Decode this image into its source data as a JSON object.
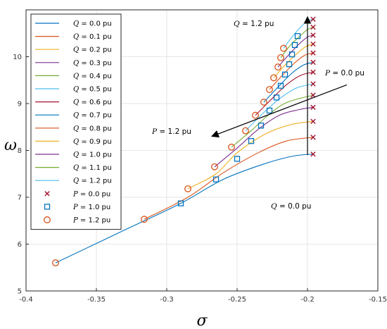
{
  "chart_data": {
    "type": "line",
    "xlabel": "σ",
    "ylabel": "ω",
    "xlim": [
      -0.4,
      -0.15
    ],
    "ylim": [
      5,
      11
    ],
    "x_ticks": [
      "-0.4",
      "-0.35",
      "-0.3",
      "-0.25",
      "-0.2",
      "-0.15"
    ],
    "y_ticks": [
      "5",
      "6",
      "7",
      "8",
      "9",
      "10"
    ],
    "grid": true,
    "legend_position": "top-left",
    "series": [
      {
        "name": "Q = 0.0 pu",
        "color": "#0072BD",
        "points": [
          [
            -0.379,
            5.6
          ],
          [
            -0.33,
            6.3
          ],
          [
            -0.29,
            6.87
          ],
          [
            -0.26,
            7.38
          ],
          [
            -0.23,
            7.72
          ],
          [
            -0.21,
            7.88
          ],
          [
            -0.196,
            7.92
          ]
        ]
      },
      {
        "name": "Q = 0.1 pu",
        "color": "#D95319",
        "points": [
          [
            -0.316,
            6.53
          ],
          [
            -0.285,
            7.0
          ],
          [
            -0.26,
            7.52
          ],
          [
            -0.235,
            7.95
          ],
          [
            -0.215,
            8.2
          ],
          [
            -0.196,
            8.28
          ]
        ]
      },
      {
        "name": "Q = 0.2 pu",
        "color": "#EDB120",
        "points": [
          [
            -0.285,
            7.18
          ],
          [
            -0.265,
            7.5
          ],
          [
            -0.25,
            7.95
          ],
          [
            -0.23,
            8.35
          ],
          [
            -0.212,
            8.55
          ],
          [
            -0.196,
            8.62
          ]
        ]
      },
      {
        "name": "Q = 0.3 pu",
        "color": "#7E2F8E",
        "points": [
          [
            -0.266,
            7.65
          ],
          [
            -0.25,
            8.05
          ],
          [
            -0.235,
            8.45
          ],
          [
            -0.22,
            8.75
          ],
          [
            -0.206,
            8.87
          ],
          [
            -0.196,
            8.92
          ]
        ]
      },
      {
        "name": "Q = 0.4 pu",
        "color": "#77AC30",
        "points": [
          [
            -0.254,
            8.07
          ],
          [
            -0.24,
            8.42
          ],
          [
            -0.228,
            8.75
          ],
          [
            -0.215,
            9.02
          ],
          [
            -0.196,
            9.18
          ]
        ]
      },
      {
        "name": "Q = 0.5 pu",
        "color": "#4DBEEE",
        "points": [
          [
            -0.244,
            8.42
          ],
          [
            -0.232,
            8.78
          ],
          [
            -0.22,
            9.1
          ],
          [
            -0.208,
            9.33
          ],
          [
            -0.196,
            9.42
          ]
        ]
      },
      {
        "name": "Q = 0.6 pu",
        "color": "#A2142F",
        "points": [
          [
            -0.237,
            8.75
          ],
          [
            -0.226,
            9.08
          ],
          [
            -0.215,
            9.4
          ],
          [
            -0.205,
            9.6
          ],
          [
            -0.196,
            9.67
          ]
        ]
      },
      {
        "name": "Q = 0.7 pu",
        "color": "#0072BD",
        "points": [
          [
            -0.231,
            9.03
          ],
          [
            -0.221,
            9.35
          ],
          [
            -0.211,
            9.65
          ],
          [
            -0.203,
            9.82
          ],
          [
            -0.196,
            9.88
          ]
        ]
      },
      {
        "name": "Q = 0.8 pu",
        "color": "#D95319",
        "points": [
          [
            -0.227,
            9.3
          ],
          [
            -0.218,
            9.6
          ],
          [
            -0.209,
            9.87
          ],
          [
            -0.202,
            10.03
          ],
          [
            -0.196,
            10.08
          ]
        ]
      },
      {
        "name": "Q = 0.9 pu",
        "color": "#EDB120",
        "points": [
          [
            -0.224,
            9.55
          ],
          [
            -0.215,
            9.85
          ],
          [
            -0.207,
            10.08
          ],
          [
            -0.201,
            10.22
          ],
          [
            -0.196,
            10.27
          ]
        ]
      },
      {
        "name": "Q = 1.0 pu",
        "color": "#7E2F8E",
        "points": [
          [
            -0.221,
            9.78
          ],
          [
            -0.213,
            10.05
          ],
          [
            -0.206,
            10.27
          ],
          [
            -0.2,
            10.42
          ],
          [
            -0.196,
            10.46
          ]
        ]
      },
      {
        "name": "Q = 1.1 pu",
        "color": "#77AC30",
        "points": [
          [
            -0.219,
            9.98
          ],
          [
            -0.212,
            10.25
          ],
          [
            -0.205,
            10.45
          ],
          [
            -0.2,
            10.58
          ],
          [
            -0.196,
            10.63
          ]
        ]
      },
      {
        "name": "Q = 1.2 pu",
        "color": "#4DBEEE",
        "points": [
          [
            -0.217,
            10.18
          ],
          [
            -0.211,
            10.42
          ],
          [
            -0.205,
            10.63
          ],
          [
            -0.2,
            10.76
          ],
          [
            -0.196,
            10.8
          ]
        ]
      }
    ],
    "markers": [
      {
        "name": "P = 0.0 pu",
        "shape": "x",
        "color": "#A2142F",
        "points": [
          [
            -0.196,
            7.92
          ],
          [
            -0.196,
            8.28
          ],
          [
            -0.196,
            8.62
          ],
          [
            -0.196,
            8.92
          ],
          [
            -0.196,
            9.18
          ],
          [
            -0.196,
            9.42
          ],
          [
            -0.196,
            9.67
          ],
          [
            -0.196,
            9.88
          ],
          [
            -0.196,
            10.08
          ],
          [
            -0.196,
            10.27
          ],
          [
            -0.196,
            10.46
          ],
          [
            -0.196,
            10.63
          ],
          [
            -0.196,
            10.8
          ]
        ]
      },
      {
        "name": "P = 1.0 pu",
        "shape": "square",
        "color": "#0072BD",
        "points": [
          [
            -0.29,
            6.87
          ],
          [
            -0.265,
            7.38
          ],
          [
            -0.25,
            7.82
          ],
          [
            -0.24,
            8.2
          ],
          [
            -0.233,
            8.53
          ],
          [
            -0.227,
            8.85
          ],
          [
            -0.222,
            9.13
          ],
          [
            -0.219,
            9.38
          ],
          [
            -0.216,
            9.62
          ],
          [
            -0.213,
            9.84
          ],
          [
            -0.211,
            10.05
          ],
          [
            -0.209,
            10.25
          ],
          [
            -0.207,
            10.44
          ]
        ]
      },
      {
        "name": "P = 1.2 pu",
        "shape": "circle",
        "color": "#D95319",
        "points": [
          [
            -0.379,
            5.6
          ],
          [
            -0.316,
            6.53
          ],
          [
            -0.285,
            7.18
          ],
          [
            -0.266,
            7.65
          ],
          [
            -0.254,
            8.07
          ],
          [
            -0.244,
            8.42
          ],
          [
            -0.237,
            8.75
          ],
          [
            -0.231,
            9.03
          ],
          [
            -0.227,
            9.3
          ],
          [
            -0.224,
            9.55
          ],
          [
            -0.221,
            9.78
          ],
          [
            -0.219,
            9.98
          ],
          [
            -0.217,
            10.18
          ]
        ]
      }
    ],
    "annotations": [
      {
        "var": "Q",
        "text": " = 1.2 pu"
      },
      {
        "var": "P",
        "text": " = 0.0 pu"
      },
      {
        "var": "P",
        "text": " = 1.2 pu"
      },
      {
        "var": "Q",
        "text": " = 0.0 pu"
      }
    ],
    "arrows": [
      {
        "from": [
          -0.2,
          7.9
        ],
        "to": [
          -0.2,
          10.85
        ]
      },
      {
        "from": [
          -0.172,
          9.4
        ],
        "to": [
          -0.268,
          8.3
        ]
      }
    ]
  }
}
